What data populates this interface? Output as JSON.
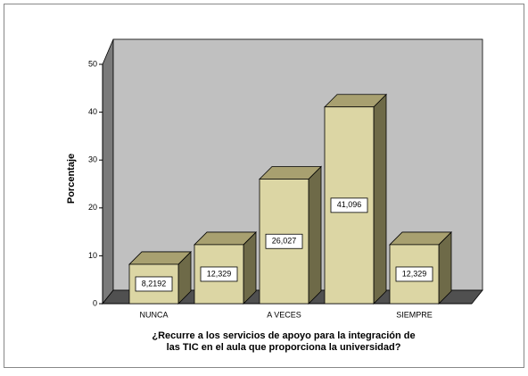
{
  "chart_data": {
    "type": "bar3d",
    "ylabel": "Porcentaje",
    "xlabel_lines": [
      "¿Recurre a los servicios  de apoyo  para la integración de",
      "las TIC en el aula  que proporciona la universidad?"
    ],
    "categories": [
      "NUNCA",
      null,
      "A VECES",
      null,
      "SIEMPRE"
    ],
    "values": [
      8.2192,
      12.329,
      26.027,
      41.096,
      12.329
    ],
    "value_labels": [
      "8,2192",
      "12,329",
      "26,027",
      "41,096",
      "12,329"
    ],
    "color": "#dcd6a4",
    "ylim": [
      0,
      50
    ],
    "yticks": [
      0,
      10,
      20,
      30,
      40,
      50
    ]
  }
}
